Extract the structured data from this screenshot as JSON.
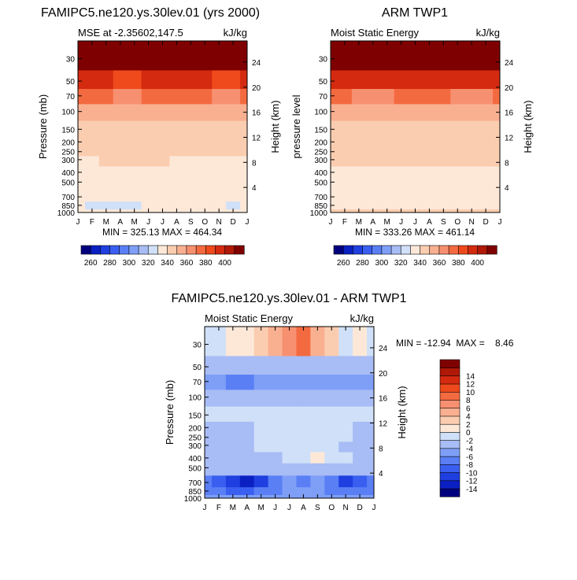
{
  "chart_data": [
    {
      "type": "heatmap",
      "id": "model",
      "title": "FAMIPC5.ne120.ys.30lev.01 (yrs 2000)",
      "subtitle_left": "MSE at -2.35602,147.5",
      "units": "kJ/kg",
      "ylabel": "Pressure (mb)",
      "ylabel_right": "Height (km)",
      "months": [
        "J",
        "F",
        "M",
        "A",
        "M",
        "J",
        "J",
        "A",
        "S",
        "O",
        "N",
        "D",
        "J"
      ],
      "pressure_levels": [
        1000,
        850,
        700,
        500,
        400,
        300,
        250,
        200,
        150,
        100,
        70,
        50,
        30
      ],
      "pressure_tick_labels": [
        "30",
        "50",
        "70",
        "100",
        "150",
        "200",
        "250",
        "300",
        "400",
        "500",
        "700",
        "850",
        "1000"
      ],
      "height_ticks_km": [
        4,
        8,
        12,
        16,
        20,
        24
      ],
      "ylim": [
        1000,
        20
      ],
      "min": 325.13,
      "max": 464.34,
      "stats_label": "MIN = 325.13   MAX = 464.34",
      "values": [
        [
          336,
          335,
          335,
          335,
          335,
          335,
          335,
          335,
          335,
          335,
          335,
          335,
          336
        ],
        [
          330,
          329,
          328,
          328,
          329,
          330,
          330,
          331,
          331,
          331,
          330,
          329,
          330
        ],
        [
          331,
          331,
          330,
          330,
          330,
          330,
          331,
          331,
          332,
          332,
          331,
          331,
          331
        ],
        [
          334,
          334,
          334,
          334,
          334,
          334,
          335,
          335,
          335,
          335,
          335,
          334,
          334
        ],
        [
          336,
          336,
          337,
          337,
          337,
          337,
          337,
          337,
          337,
          337,
          336,
          336,
          336
        ],
        [
          338,
          339,
          340,
          341,
          341,
          340,
          340,
          339,
          339,
          339,
          338,
          338,
          338
        ],
        [
          342,
          342,
          342,
          343,
          343,
          342,
          342,
          341,
          341,
          342,
          342,
          342,
          342
        ],
        [
          343,
          343,
          344,
          344,
          344,
          343,
          343,
          342,
          342,
          343,
          343,
          343,
          343
        ],
        [
          346,
          346,
          346,
          346,
          346,
          346,
          346,
          345,
          345,
          345,
          346,
          346,
          346
        ],
        [
          357,
          357,
          356,
          355,
          355,
          356,
          357,
          357,
          356,
          355,
          354,
          355,
          357
        ],
        [
          372,
          371,
          370,
          369,
          369,
          371,
          373,
          373,
          372,
          370,
          368,
          369,
          372
        ],
        [
          393,
          392,
          390,
          388,
          388,
          391,
          395,
          395,
          393,
          390,
          387,
          388,
          393
        ],
        [
          458,
          458,
          457,
          456,
          456,
          457,
          458,
          458,
          458,
          457,
          456,
          456,
          458
        ]
      ]
    },
    {
      "type": "heatmap",
      "id": "obs",
      "title": "ARM TWP1",
      "subtitle_left": "Moist Static Energy",
      "units": "kJ/kg",
      "ylabel": "pressure level",
      "ylabel_right": "Height (km)",
      "months": [
        "J",
        "F",
        "M",
        "A",
        "M",
        "J",
        "J",
        "A",
        "S",
        "O",
        "N",
        "D",
        "J"
      ],
      "pressure_levels": [
        1000,
        850,
        700,
        500,
        400,
        300,
        250,
        200,
        150,
        100,
        70,
        50,
        30
      ],
      "pressure_tick_labels": [
        "30",
        "50",
        "70",
        "100",
        "150",
        "200",
        "250",
        "300",
        "400",
        "500",
        "700",
        "850",
        "1000"
      ],
      "height_ticks_km": [
        4,
        8,
        12,
        16,
        20,
        24
      ],
      "ylim": [
        1000,
        20
      ],
      "min": 333.26,
      "max": 461.14,
      "stats_label": "MIN = 333.26   MAX = 461.14",
      "values": [
        [
          342,
          342,
          342,
          342,
          342,
          342,
          342,
          342,
          342,
          342,
          342,
          342,
          342
        ],
        [
          338,
          338,
          337,
          337,
          337,
          337,
          337,
          337,
          338,
          338,
          338,
          338,
          338
        ],
        [
          336,
          336,
          336,
          335,
          335,
          335,
          336,
          336,
          336,
          336,
          336,
          336,
          336
        ],
        [
          335,
          335,
          335,
          335,
          335,
          335,
          335,
          335,
          335,
          335,
          335,
          335,
          335
        ],
        [
          337,
          338,
          338,
          339,
          339,
          339,
          339,
          339,
          339,
          338,
          338,
          338,
          337
        ],
        [
          341,
          341,
          341,
          341,
          342,
          342,
          342,
          342,
          342,
          341,
          341,
          341,
          341
        ],
        [
          343,
          343,
          343,
          343,
          343,
          343,
          343,
          343,
          343,
          343,
          343,
          343,
          343
        ],
        [
          344,
          344,
          344,
          344,
          344,
          344,
          344,
          344,
          344,
          344,
          344,
          344,
          344
        ],
        [
          346,
          346,
          346,
          346,
          346,
          346,
          346,
          346,
          346,
          346,
          346,
          346,
          346
        ],
        [
          356,
          356,
          356,
          356,
          356,
          356,
          356,
          356,
          356,
          356,
          356,
          356,
          356
        ],
        [
          370,
          370,
          369,
          369,
          369,
          370,
          370,
          370,
          370,
          369,
          369,
          369,
          370
        ],
        [
          392,
          392,
          391,
          390,
          390,
          391,
          392,
          392,
          392,
          391,
          390,
          391,
          392
        ],
        [
          458,
          458,
          458,
          458,
          458,
          458,
          458,
          458,
          458,
          458,
          458,
          458,
          458
        ]
      ]
    },
    {
      "type": "heatmap",
      "id": "diff",
      "title": "FAMIPC5.ne120.ys.30lev.01 - ARM TWP1",
      "subtitle_left": "Moist Static Energy",
      "units": "kJ/kg",
      "ylabel": "Pressure (mb)",
      "ylabel_right": "Height (km)",
      "months": [
        "J",
        "F",
        "M",
        "A",
        "M",
        "J",
        "J",
        "A",
        "S",
        "O",
        "N",
        "D",
        "J"
      ],
      "pressure_levels": [
        1000,
        850,
        700,
        500,
        400,
        300,
        250,
        200,
        150,
        100,
        70,
        50,
        30
      ],
      "pressure_tick_labels": [
        "30",
        "50",
        "70",
        "100",
        "150",
        "200",
        "250",
        "300",
        "400",
        "500",
        "700",
        "850",
        "1000"
      ],
      "height_ticks_km": [
        4,
        8,
        12,
        16,
        20,
        24
      ],
      "ylim": [
        1000,
        20
      ],
      "min": -12.94,
      "max": 8.46,
      "stats_label": "MIN = -12.94  MAX =    8.46",
      "values": [
        [
          -5,
          -5,
          -5,
          -5,
          -5,
          -5,
          -5,
          -5,
          -5,
          -5,
          -5,
          -5,
          -5
        ],
        [
          -8,
          -8,
          -9,
          -9,
          -8,
          -7,
          -6,
          -6,
          -6,
          -7,
          -8,
          -8,
          -8
        ],
        [
          -7,
          -9,
          -11,
          -12.9,
          -11,
          -8,
          -6,
          -7,
          -6,
          -8,
          -11,
          -10,
          -7
        ],
        [
          -4,
          -4,
          -4,
          -4,
          -4,
          -4,
          -3.5,
          -3,
          -3,
          -4,
          -4,
          -4,
          -4
        ],
        [
          -2.5,
          -2.5,
          -3,
          -3,
          -3,
          -3,
          -2,
          -1,
          1,
          -1,
          -2,
          -2.5,
          -2.5
        ],
        [
          -2.5,
          -2.5,
          -2.5,
          -2.5,
          -2,
          -1.5,
          -1.5,
          -1.5,
          -1.5,
          -2,
          -2.5,
          -2.5,
          -2.5
        ],
        [
          -2.5,
          -2.5,
          -2.5,
          -2.5,
          -2,
          -1.5,
          -1,
          -1,
          -1,
          -1.5,
          -2,
          -2.5,
          -2.5
        ],
        [
          -2.5,
          -2.5,
          -2.5,
          -2.5,
          -2,
          -1.5,
          -1,
          -1,
          -1,
          -1.5,
          -2,
          -2.5,
          -2.5
        ],
        [
          -1.5,
          -1.5,
          -1.5,
          -1.5,
          -1,
          -0.5,
          -0.5,
          -0.5,
          -0.5,
          -1,
          -1.5,
          -1.5,
          -1.5
        ],
        [
          -3,
          -3,
          -4,
          -4,
          -3,
          -3,
          -3,
          -3,
          -3,
          -3,
          -3,
          -3,
          -3
        ],
        [
          -5,
          -6,
          -7,
          -7,
          -6,
          -5,
          -5,
          -5,
          -5,
          -5,
          -5,
          -5,
          -6
        ],
        [
          -3,
          -3.5,
          -4,
          -4,
          -3,
          -3,
          -2.5,
          -2.5,
          -3,
          -3,
          -3,
          -3,
          -3
        ],
        [
          -2,
          -1,
          0,
          1,
          3,
          5,
          7,
          8.46,
          5,
          2,
          -1,
          0.5,
          -2
        ]
      ]
    }
  ],
  "colorbars": {
    "absolute": {
      "bounds": [
        250,
        260,
        270,
        280,
        290,
        300,
        310,
        320,
        330,
        340,
        350,
        360,
        370,
        380,
        390,
        400,
        410
      ],
      "tick_labels": [
        "260",
        "280",
        "300",
        "320",
        "340",
        "360",
        "380",
        "400"
      ],
      "colors": [
        "#00007f",
        "#0a20c2",
        "#1f3fe0",
        "#3a5ff0",
        "#5a7ff5",
        "#7f9ff7",
        "#a8bcf5",
        "#cfe0f8",
        "#fde8d8",
        "#fbcdb0",
        "#f9b090",
        "#f79070",
        "#f46a40",
        "#ee4a1c",
        "#d42a10",
        "#b01808",
        "#7f0000"
      ]
    },
    "difference": {
      "bounds": [
        -16,
        -14,
        -12,
        -10,
        -8,
        -6,
        -4,
        -2,
        0,
        2,
        4,
        6,
        8,
        10,
        12,
        14,
        16
      ],
      "tick_labels": [
        "14",
        "12",
        "10",
        "8",
        "6",
        "4",
        "2",
        "0",
        "-2",
        "-4",
        "-6",
        "-8",
        "-10",
        "-12",
        "-14"
      ],
      "colors": [
        "#00007f",
        "#0a20c2",
        "#1f3fe0",
        "#3a5ff0",
        "#5a7ff5",
        "#7f9ff7",
        "#a8bcf5",
        "#cfe0f8",
        "#fde8d8",
        "#fbcdb0",
        "#f9b090",
        "#f79070",
        "#f46a40",
        "#ee4a1c",
        "#d42a10",
        "#b01808",
        "#7f0000"
      ]
    }
  }
}
